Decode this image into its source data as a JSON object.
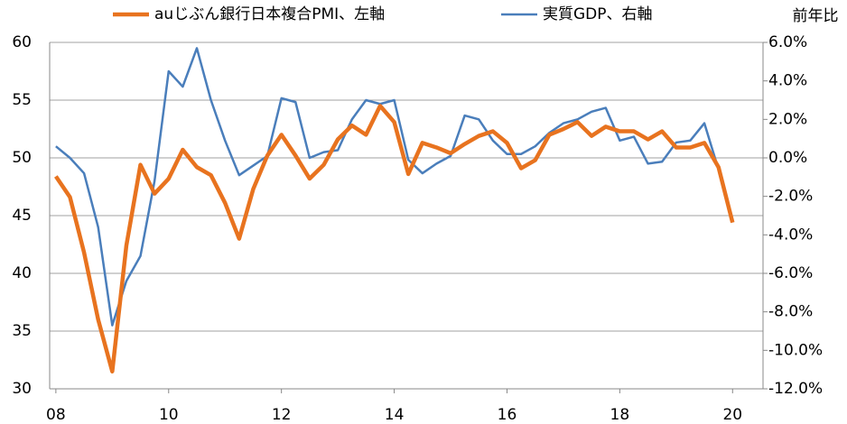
{
  "chart_data": {
    "type": "line",
    "x": [
      2008,
      2008.25,
      2008.5,
      2008.75,
      2009,
      2009.25,
      2009.5,
      2009.75,
      2010,
      2010.25,
      2010.5,
      2010.75,
      2011,
      2011.25,
      2011.5,
      2011.75,
      2012,
      2012.25,
      2012.5,
      2012.75,
      2013,
      2013.25,
      2013.5,
      2013.75,
      2014,
      2014.25,
      2014.5,
      2014.75,
      2015,
      2015.25,
      2015.5,
      2015.75,
      2016,
      2016.25,
      2016.5,
      2016.75,
      2017,
      2017.25,
      2017.5,
      2017.75,
      2018,
      2018.25,
      2018.5,
      2018.75,
      2019,
      2019.25,
      2019.5,
      2019.75,
      2020
    ],
    "series": [
      {
        "name": "auじぶん銀行日本複合PMI、左軸",
        "color": "#e8731f",
        "axis": "y",
        "values": [
          48.4,
          46.6,
          41.8,
          36,
          31.5,
          42.4,
          49.4,
          46.9,
          48.2,
          50.7,
          49.2,
          48.5,
          46.1,
          43,
          47.3,
          50.2,
          52,
          50.2,
          48.2,
          49.4,
          51.6,
          52.8,
          52,
          54.5,
          53.1,
          48.6,
          51.3,
          50.9,
          50.4,
          51.2,
          51.9,
          52.3,
          51.3,
          49.1,
          49.8,
          52,
          52.5,
          53.1,
          51.9,
          52.7,
          52.3,
          52.3,
          51.6,
          52.3,
          50.9,
          50.9,
          51.3,
          49.2,
          44.4
        ]
      },
      {
        "name": "実質GDP、右軸",
        "color": "#4a7ebb",
        "axis": "y2",
        "values": [
          0.6,
          0,
          -0.8,
          -3.6,
          -8.7,
          -6.4,
          -5.1,
          -1.2,
          4.5,
          3.7,
          5.7,
          3,
          0.9,
          -0.9,
          -0.4,
          0.1,
          3.1,
          2.9,
          0,
          0.3,
          0.4,
          2,
          3,
          2.8,
          3,
          -0.1,
          -0.8,
          -0.3,
          0.1,
          2.2,
          2,
          0.9,
          0.2,
          0.2,
          0.6,
          1.3,
          1.8,
          2,
          2.4,
          2.6,
          0.9,
          1.1,
          -0.3,
          -0.2,
          0.8,
          0.9,
          1.8,
          -0.6,
          null
        ]
      }
    ],
    "y2label": "前年比",
    "xlim": [
      2007.89,
      2020.54
    ],
    "xticks": [
      {
        "value": 2008,
        "label": "08"
      },
      {
        "value": 2010,
        "label": "10"
      },
      {
        "value": 2012,
        "label": "12"
      },
      {
        "value": 2014,
        "label": "14"
      },
      {
        "value": 2016,
        "label": "16"
      },
      {
        "value": 2018,
        "label": "18"
      },
      {
        "value": 2020,
        "label": "20"
      }
    ],
    "ylim": [
      30,
      60
    ],
    "yticks": [
      30,
      35,
      40,
      45,
      50,
      55,
      60
    ],
    "y2lim": [
      -12,
      6
    ],
    "y2ticks": [
      {
        "value": -12,
        "label": "-12.0%"
      },
      {
        "value": -10,
        "label": "-10.0%"
      },
      {
        "value": -8,
        "label": "-8.0%"
      },
      {
        "value": -6,
        "label": "-6.0%"
      },
      {
        "value": -4,
        "label": "-4.0%"
      },
      {
        "value": -2,
        "label": "-2.0%"
      },
      {
        "value": 0,
        "label": "0.0%"
      },
      {
        "value": 2,
        "label": "2.0%"
      },
      {
        "value": 4,
        "label": "4.0%"
      },
      {
        "value": 6,
        "label": "6.0%"
      }
    ],
    "grid": true,
    "legend": "top"
  }
}
